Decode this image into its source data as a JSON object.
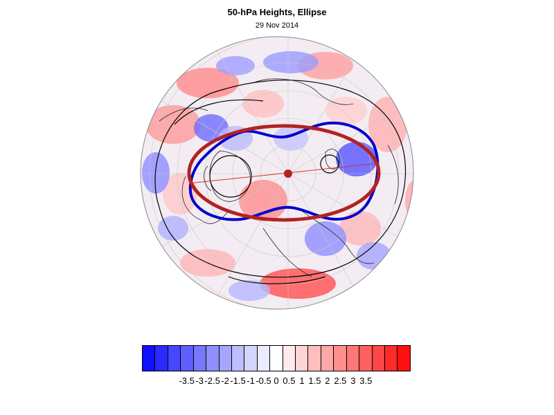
{
  "title": "50-hPa Heights, Ellipse",
  "subtitle": "29 Nov 2014",
  "colorbar": {
    "colors": [
      "#1010ff",
      "#2a2aff",
      "#4646ff",
      "#5f5fff",
      "#7777ff",
      "#8f8fff",
      "#a6a6ff",
      "#bdbdff",
      "#d4d4ff",
      "#ebebff",
      "#ffffff",
      "#ffebeb",
      "#ffd4d4",
      "#ffbdbd",
      "#ffa6a6",
      "#ff8f8f",
      "#ff7777",
      "#ff5f5f",
      "#ff4646",
      "#ff2a2a",
      "#ff1010"
    ],
    "tick_labels": [
      "-3.5",
      "-3",
      "-2.5",
      "-2",
      "-1.5",
      "-1",
      "-0.5",
      "0",
      "0.5",
      "1",
      "1.5",
      "2",
      "2.5",
      "3",
      "3.5"
    ]
  },
  "map": {
    "projection": "north polar stereographic",
    "ellipse_color": "#b22222",
    "contour_color": "#0000cc",
    "center_marker_color": "#b22222"
  }
}
